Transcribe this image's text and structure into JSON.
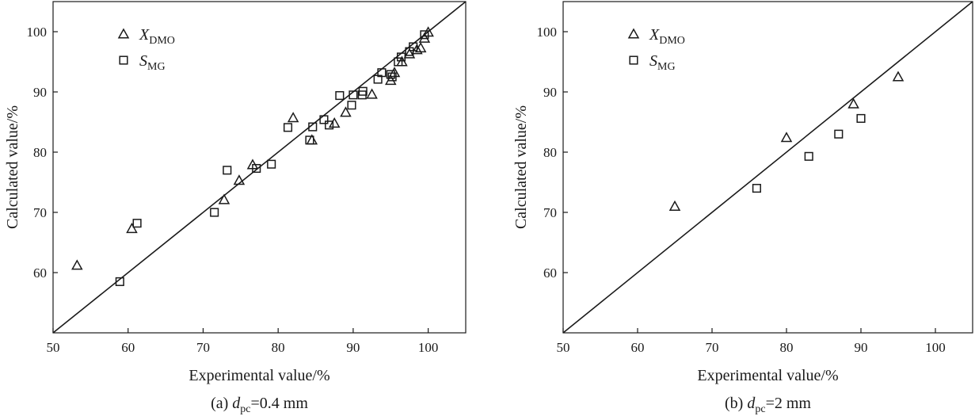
{
  "chart_data": [
    {
      "type": "scatter",
      "caption": "(a) d_pc=0.4 mm",
      "caption_prefix": "(a) ",
      "caption_var": "d",
      "caption_sub": "pc",
      "caption_suffix": "=0.4 mm",
      "xlabel": "Experimental value/%",
      "ylabel": "Calculated value/%",
      "xlim": [
        50,
        105
      ],
      "ylim": [
        50,
        105
      ],
      "xticks": [
        50,
        60,
        70,
        80,
        90,
        100
      ],
      "yticks": [
        60,
        70,
        80,
        90,
        100
      ],
      "reference_line": "y = x",
      "legend_position": "top-left",
      "series": [
        {
          "name": "X_DMO",
          "legend_main": "X",
          "legend_sub": "DMO",
          "marker": "triangle",
          "x": [
            53.2,
            60.5,
            72.8,
            74.8,
            76.6,
            82.0,
            84.5,
            87.5,
            89.0,
            92.5,
            95.0,
            95.5,
            96.5,
            97.5,
            98.5,
            99.0,
            99.5,
            100.0
          ],
          "y": [
            61.2,
            67.3,
            72.1,
            75.3,
            77.9,
            85.7,
            82.0,
            84.8,
            86.6,
            89.6,
            91.9,
            93.2,
            95.0,
            96.3,
            97.0,
            97.3,
            98.9,
            99.9
          ]
        },
        {
          "name": "S_MG",
          "legend_main": "S",
          "legend_sub": "MG",
          "marker": "square",
          "x": [
            58.9,
            61.2,
            71.5,
            73.2,
            77.1,
            79.1,
            81.3,
            84.2,
            84.6,
            86.1,
            86.8,
            88.2,
            89.8,
            90.0,
            91.2,
            91.3,
            93.3,
            93.8,
            95.0,
            95.2,
            96.0,
            96.4,
            97.5,
            98.0,
            99.5
          ],
          "y": [
            58.5,
            68.2,
            70.0,
            77.0,
            77.3,
            78.0,
            84.1,
            82.0,
            84.2,
            85.4,
            84.5,
            89.4,
            87.8,
            89.5,
            89.5,
            90.1,
            92.1,
            93.2,
            92.9,
            92.5,
            95.0,
            95.8,
            96.7,
            97.5,
            99.5
          ]
        }
      ]
    },
    {
      "type": "scatter",
      "caption": "(b) d_pc=2 mm",
      "caption_prefix": "(b) ",
      "caption_var": "d",
      "caption_sub": "pc",
      "caption_suffix": "=2 mm",
      "xlabel": "Experimental value/%",
      "ylabel": "Calculated value/%",
      "xlim": [
        50,
        105
      ],
      "ylim": [
        50,
        105
      ],
      "xticks": [
        50,
        60,
        70,
        80,
        90,
        100
      ],
      "yticks": [
        60,
        70,
        80,
        90,
        100
      ],
      "reference_line": "y = x",
      "legend_position": "top-left",
      "series": [
        {
          "name": "X_DMO",
          "legend_main": "X",
          "legend_sub": "DMO",
          "marker": "triangle",
          "x": [
            65.0,
            80.0,
            89.0,
            95.0
          ],
          "y": [
            71.0,
            82.4,
            88.0,
            92.5
          ]
        },
        {
          "name": "S_MG",
          "legend_main": "S",
          "legend_sub": "MG",
          "marker": "square",
          "x": [
            76.0,
            83.0,
            87.0,
            90.0
          ],
          "y": [
            74.0,
            79.3,
            83.0,
            85.6
          ]
        }
      ]
    }
  ]
}
